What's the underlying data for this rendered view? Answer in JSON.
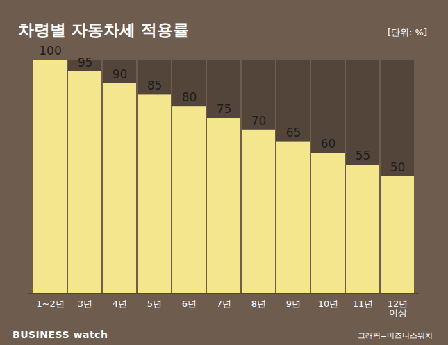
{
  "chart_data": {
    "type": "bar",
    "title": "차령별 자동차세 적용률",
    "subtitle": "[단위: %]",
    "categories": [
      "1~2년",
      "3년",
      "4년",
      "5년",
      "6년",
      "7년",
      "8년",
      "9년",
      "10년",
      "11년",
      "12년\n이상"
    ],
    "values": [
      100,
      95,
      90,
      85,
      80,
      75,
      70,
      65,
      60,
      55,
      50
    ],
    "color": "#f4e68c",
    "ylim": [
      0,
      100
    ],
    "data_labels": true,
    "tick_labels": "x",
    "grid": false,
    "annotations": [
      "BUSINESS watch",
      "그래픽=비즈니스워치"
    ]
  }
}
